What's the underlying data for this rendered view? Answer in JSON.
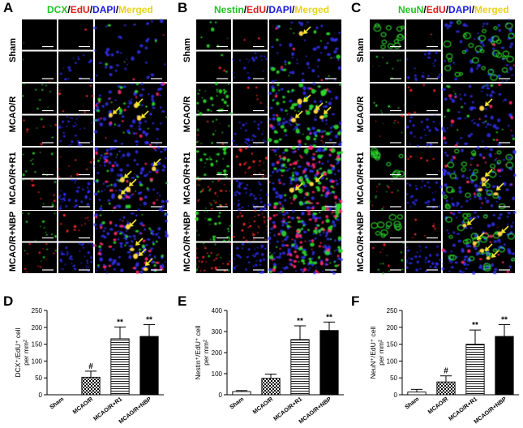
{
  "figure": {
    "micrograph_panels": [
      {
        "letter": "A",
        "title_parts": [
          {
            "text": "DCX",
            "color": "#22c322"
          },
          {
            "text": "/",
            "color": "#000000"
          },
          {
            "text": "EdU",
            "color": "#e02020"
          },
          {
            "text": "/",
            "color": "#000000"
          },
          {
            "text": "DAPI",
            "color": "#1a1ae0"
          },
          {
            "text": "/",
            "color": "#000000"
          },
          {
            "text": "Merged",
            "color": "#e8d21a"
          }
        ]
      },
      {
        "letter": "B",
        "title_parts": [
          {
            "text": "Nestin",
            "color": "#22c322"
          },
          {
            "text": "/",
            "color": "#000000"
          },
          {
            "text": "EdU",
            "color": "#e02020"
          },
          {
            "text": "/",
            "color": "#000000"
          },
          {
            "text": "DAPI",
            "color": "#1a1ae0"
          },
          {
            "text": "/",
            "color": "#000000"
          },
          {
            "text": "Merged",
            "color": "#e8d21a"
          }
        ]
      },
      {
        "letter": "C",
        "title_parts": [
          {
            "text": "NeuN",
            "color": "#22c322"
          },
          {
            "text": "/",
            "color": "#000000"
          },
          {
            "text": "EdU",
            "color": "#e02020"
          },
          {
            "text": "/",
            "color": "#000000"
          },
          {
            "text": "DAPI",
            "color": "#1a1ae0"
          },
          {
            "text": "/",
            "color": "#000000"
          },
          {
            "text": "Merged",
            "color": "#e8d21a"
          }
        ]
      }
    ],
    "row_labels": [
      "Sham",
      "MCAO/R",
      "MCAO/R+R1",
      "MCAO/R+NBP"
    ]
  },
  "chart_data": [
    {
      "letter": "D",
      "type": "bar",
      "ylabel_lines": [
        "DCX⁺/EdU⁺ cell",
        "per mm²"
      ],
      "categories": [
        "Sham",
        "MCAO/R",
        "MCAO/R+R1",
        "MCAO/R+NBP"
      ],
      "values": [
        0,
        52,
        166,
        173
      ],
      "errors": [
        0,
        18,
        35,
        35
      ],
      "sig": [
        "",
        "#",
        "**",
        "**"
      ],
      "ylim": [
        0,
        250
      ],
      "yticks": [
        0,
        50,
        100,
        150,
        200,
        250
      ],
      "fills": [
        "white",
        "check",
        "hlines",
        "black"
      ]
    },
    {
      "letter": "E",
      "type": "bar",
      "ylabel_lines": [
        "Nestin⁺/EdU⁺ cell",
        "per mm²"
      ],
      "categories": [
        "Sham",
        "MCAO/R",
        "MCAO/R+R1",
        "MCAO/R+NBP"
      ],
      "values": [
        15,
        78,
        262,
        305
      ],
      "errors": [
        5,
        20,
        65,
        40
      ],
      "sig": [
        "",
        "",
        "**",
        "**"
      ],
      "ylim": [
        0,
        400
      ],
      "yticks": [
        0,
        100,
        200,
        300,
        400
      ],
      "fills": [
        "white",
        "check",
        "hlines",
        "black"
      ]
    },
    {
      "letter": "F",
      "type": "bar",
      "ylabel_lines": [
        "NeuN⁺/EdU⁺ cell",
        "per mm²"
      ],
      "categories": [
        "Sham",
        "MCAO/R",
        "MCAO/R+R1",
        "MCAO/R+NBP"
      ],
      "values": [
        8,
        38,
        150,
        173
      ],
      "errors": [
        8,
        18,
        42,
        35
      ],
      "sig": [
        "",
        "#",
        "**",
        "**"
      ],
      "ylim": [
        0,
        250
      ],
      "yticks": [
        0,
        50,
        100,
        150,
        200,
        250
      ],
      "fills": [
        "white",
        "check",
        "hlines",
        "black"
      ]
    }
  ]
}
